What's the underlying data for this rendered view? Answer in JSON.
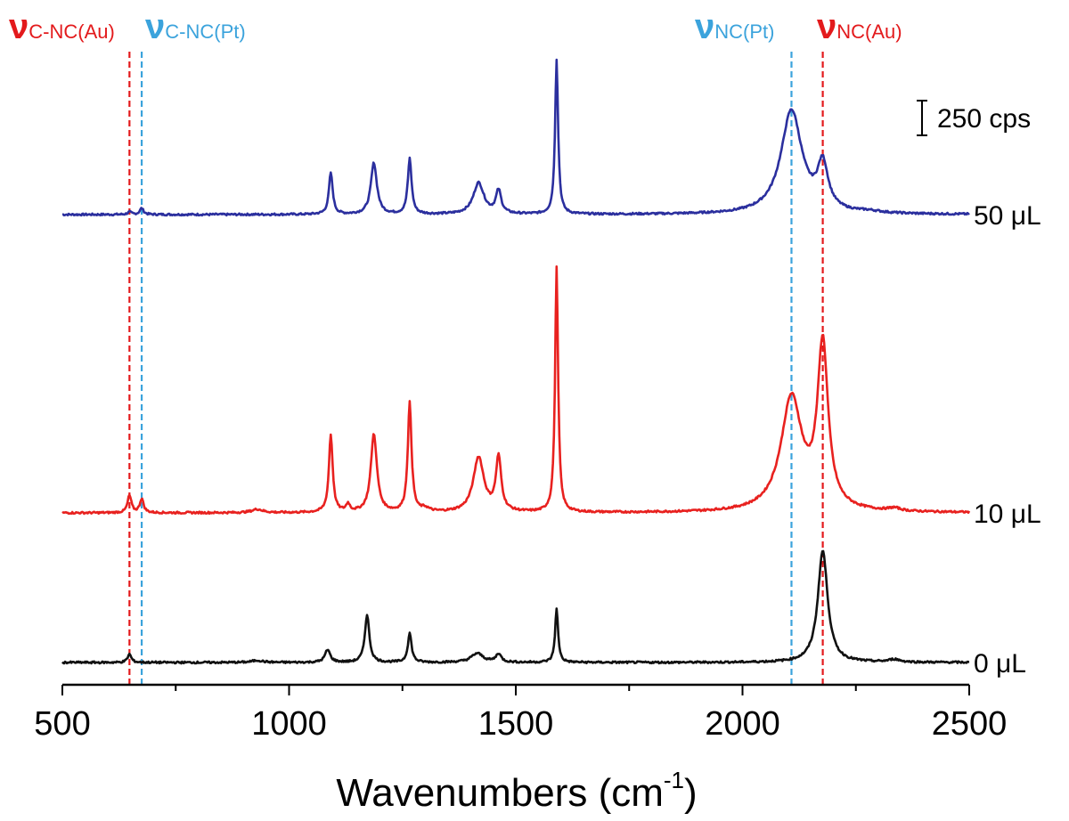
{
  "chart_data": {
    "type": "line",
    "xlabel": "Wavenumbers (cm",
    "xlabel_sup": "-1",
    "xlabel_end": ")",
    "xlim": [
      500,
      2500
    ],
    "xticks": [
      "500",
      "1000",
      "1500",
      "2000",
      "2500"
    ],
    "x_minor_step": 250,
    "scale_bar": {
      "label": "250 cps",
      "value": 250
    },
    "colors": {
      "red_marker": "#e31a1c",
      "blue_marker": "#3ba3dc",
      "axis": "#000000"
    },
    "markers": [
      {
        "symbol": "ν",
        "sub": "C-NC(Au)",
        "x": 648,
        "color": "#e31a1c"
      },
      {
        "symbol": "ν",
        "sub": "C-NC(Pt)",
        "x": 675,
        "color": "#3ba3dc"
      },
      {
        "symbol": "ν",
        "sub": "NC(Pt)",
        "x": 2108,
        "color": "#3ba3dc"
      },
      {
        "symbol": "ν",
        "sub": "NC(Au)",
        "x": 2177,
        "color": "#e31a1c"
      }
    ],
    "series": [
      {
        "name": "50 μL",
        "color": "#2b2f9e",
        "baseline": 0,
        "peaks": [
          {
            "x": 648,
            "h": 18,
            "w": 5
          },
          {
            "x": 675,
            "h": 45,
            "w": 5
          },
          {
            "x": 1092,
            "h": 300,
            "w": 5
          },
          {
            "x": 1187,
            "h": 370,
            "w": 8
          },
          {
            "x": 1266,
            "h": 400,
            "w": 5
          },
          {
            "x": 1418,
            "h": 225,
            "w": 14
          },
          {
            "x": 1462,
            "h": 165,
            "w": 7
          },
          {
            "x": 1590,
            "h": 1115,
            "w": 4
          },
          {
            "x": 2108,
            "h": 745,
            "w": 28
          },
          {
            "x": 2177,
            "h": 320,
            "w": 14
          },
          {
            "x": 2280,
            "h": 12,
            "w": 30
          }
        ]
      },
      {
        "name": "10 μL",
        "color": "#e8211f",
        "baseline": 0,
        "peaks": [
          {
            "x": 648,
            "h": 125,
            "w": 5
          },
          {
            "x": 675,
            "h": 100,
            "w": 5
          },
          {
            "x": 930,
            "h": 25,
            "w": 14
          },
          {
            "x": 1092,
            "h": 560,
            "w": 5
          },
          {
            "x": 1130,
            "h": 55,
            "w": 5
          },
          {
            "x": 1187,
            "h": 565,
            "w": 8
          },
          {
            "x": 1266,
            "h": 785,
            "w": 5
          },
          {
            "x": 1300,
            "h": 25,
            "w": 10
          },
          {
            "x": 1418,
            "h": 395,
            "w": 14
          },
          {
            "x": 1462,
            "h": 385,
            "w": 7
          },
          {
            "x": 1590,
            "h": 1760,
            "w": 4
          },
          {
            "x": 2108,
            "h": 815,
            "w": 28
          },
          {
            "x": 2177,
            "h": 1170,
            "w": 14
          },
          {
            "x": 2335,
            "h": 20,
            "w": 15
          }
        ]
      },
      {
        "name": "0 μL",
        "color": "#111111",
        "baseline": 0,
        "peaks": [
          {
            "x": 648,
            "h": 60,
            "w": 5
          },
          {
            "x": 930,
            "h": 15,
            "w": 14
          },
          {
            "x": 1085,
            "h": 90,
            "w": 7
          },
          {
            "x": 1172,
            "h": 340,
            "w": 6
          },
          {
            "x": 1266,
            "h": 210,
            "w": 5
          },
          {
            "x": 1415,
            "h": 65,
            "w": 16
          },
          {
            "x": 1462,
            "h": 60,
            "w": 7
          },
          {
            "x": 1590,
            "h": 385,
            "w": 4
          },
          {
            "x": 2177,
            "h": 805,
            "w": 13
          },
          {
            "x": 2335,
            "h": 20,
            "w": 15
          }
        ]
      }
    ]
  }
}
